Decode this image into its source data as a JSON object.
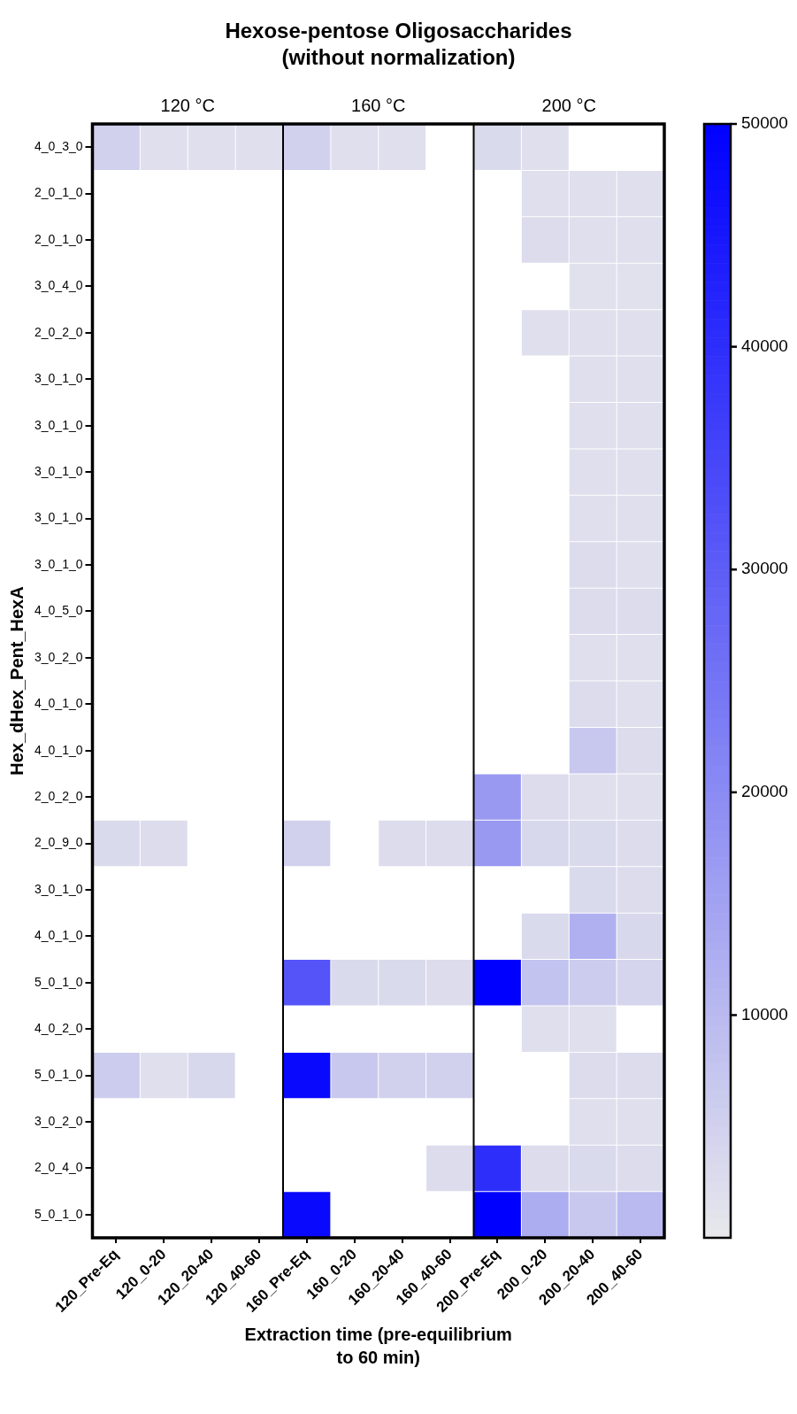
{
  "chart_data": {
    "type": "heatmap",
    "title": "Hexose-pentose Oligosaccharides (without normalization)",
    "xlabel": "Extraction time (pre-equilibrium to 60 min)",
    "ylabel": "Hex_dHex_Pent_HexA",
    "annotations": [
      "120 °C",
      "160 °C",
      "200 °C"
    ],
    "categories": [
      "120_Pre-Eq",
      "120_0-20",
      "120_20-40",
      "120_40-60",
      "160_Pre-Eq",
      "160_0-20",
      "160_20-40",
      "160_40-60",
      "200_Pre-Eq",
      "200_0-20",
      "200_20-40",
      "200_40-60"
    ],
    "y_categories": [
      "4_0_3_0",
      "2_0_1_0",
      "2_0_1_0",
      "3_0_4_0",
      "2_0_2_0",
      "3_0_1_0",
      "3_0_1_0",
      "3_0_1_0",
      "3_0_1_0",
      "3_0_1_0",
      "4_0_5_0",
      "3_0_2_0",
      "4_0_1_0",
      "4_0_1_0",
      "2_0_2_0",
      "2_0_9_0",
      "3_0_1_0",
      "4_0_1_0",
      "5_0_1_0",
      "4_0_2_0",
      "5_0_1_0",
      "3_0_2_0",
      "2_0_4_0",
      "5_0_1_0"
    ],
    "cells": [
      [
        5000,
        2000,
        2000,
        2000,
        5000,
        2000,
        2000,
        null,
        3000,
        2000,
        null,
        null
      ],
      [
        null,
        null,
        null,
        null,
        null,
        null,
        null,
        null,
        null,
        2000,
        2000,
        2000
      ],
      [
        null,
        null,
        null,
        null,
        null,
        null,
        null,
        null,
        null,
        2500,
        2000,
        2000
      ],
      [
        null,
        null,
        null,
        null,
        null,
        null,
        null,
        null,
        null,
        null,
        1500,
        1500
      ],
      [
        null,
        null,
        null,
        null,
        null,
        null,
        null,
        null,
        null,
        2000,
        2000,
        2000
      ],
      [
        null,
        null,
        null,
        null,
        null,
        null,
        null,
        null,
        null,
        null,
        2000,
        2000
      ],
      [
        null,
        null,
        null,
        null,
        null,
        null,
        null,
        null,
        null,
        null,
        2000,
        2000
      ],
      [
        null,
        null,
        null,
        null,
        null,
        null,
        null,
        null,
        null,
        null,
        2000,
        2000
      ],
      [
        null,
        null,
        null,
        null,
        null,
        null,
        null,
        null,
        null,
        null,
        2000,
        2000
      ],
      [
        null,
        null,
        null,
        null,
        null,
        null,
        null,
        null,
        null,
        null,
        2500,
        2000
      ],
      [
        null,
        null,
        null,
        null,
        null,
        null,
        null,
        null,
        null,
        null,
        2500,
        2500
      ],
      [
        null,
        null,
        null,
        null,
        null,
        null,
        null,
        null,
        null,
        null,
        2000,
        2000
      ],
      [
        null,
        null,
        null,
        null,
        null,
        null,
        null,
        null,
        null,
        null,
        2500,
        2000
      ],
      [
        null,
        null,
        null,
        null,
        null,
        null,
        null,
        null,
        null,
        null,
        7000,
        2500
      ],
      [
        null,
        null,
        null,
        null,
        null,
        null,
        null,
        null,
        17000,
        2500,
        2000,
        2000
      ],
      [
        3000,
        2500,
        null,
        null,
        5000,
        null,
        2500,
        2500,
        17000,
        3500,
        3000,
        2500
      ],
      [
        null,
        null,
        null,
        null,
        null,
        null,
        null,
        null,
        null,
        null,
        3000,
        2500
      ],
      [
        null,
        null,
        null,
        null,
        null,
        null,
        null,
        null,
        null,
        3000,
        12000,
        3500
      ],
      [
        null,
        null,
        null,
        null,
        32000,
        3000,
        3000,
        2500,
        50000,
        8000,
        6000,
        4000
      ],
      [
        null,
        null,
        null,
        null,
        null,
        null,
        null,
        null,
        null,
        2000,
        2000,
        null
      ],
      [
        6000,
        2000,
        3500,
        null,
        48000,
        7000,
        5000,
        5000,
        null,
        null,
        2500,
        2500
      ],
      [
        null,
        null,
        null,
        null,
        null,
        null,
        null,
        null,
        null,
        null,
        2000,
        2000
      ],
      [
        null,
        null,
        null,
        null,
        null,
        null,
        null,
        2500,
        40000,
        2500,
        3000,
        2500
      ],
      [
        null,
        null,
        null,
        null,
        48000,
        null,
        null,
        null,
        50000,
        13000,
        7000,
        10000
      ]
    ],
    "clim": [
      0,
      50000
    ],
    "cticks": [
      10000,
      20000,
      30000,
      40000,
      50000
    ]
  }
}
